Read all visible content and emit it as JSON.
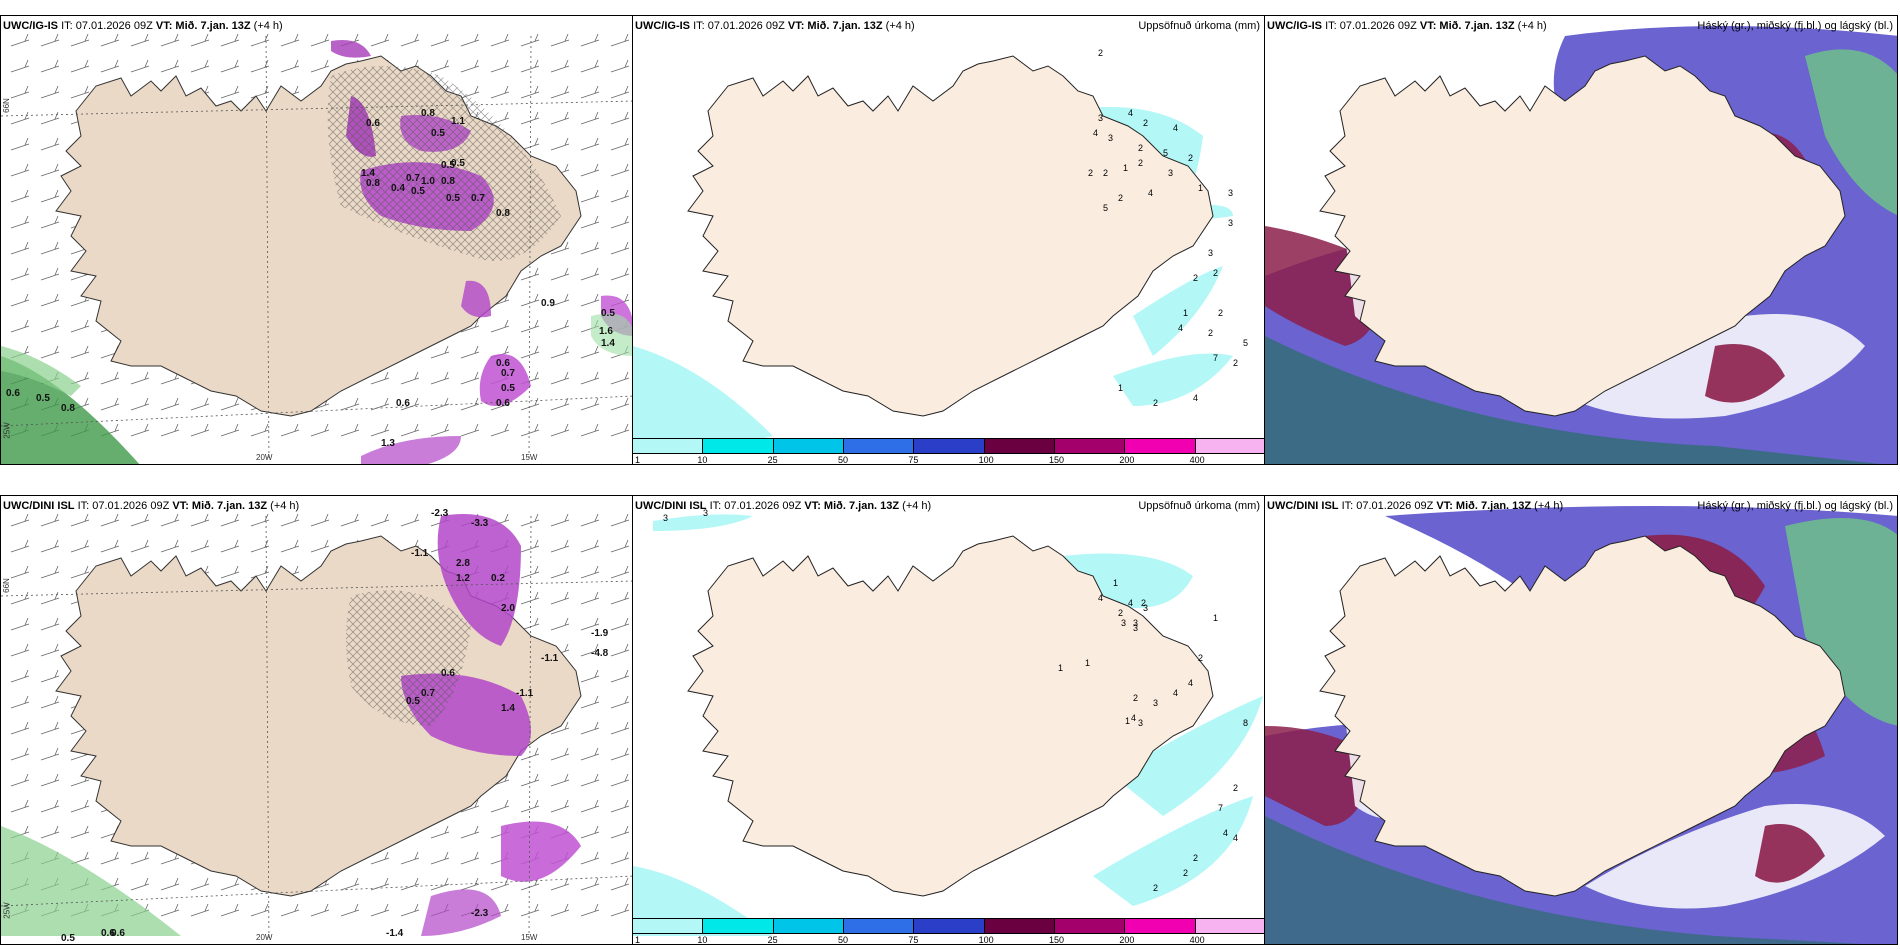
{
  "panels": [
    {
      "id": "p1",
      "model": "UWC/IG-IS",
      "it": "IT: 07.01.2026 09Z",
      "vt_label": "VT:",
      "vt": "Mið. 7.jan. 13Z",
      "lead": "(+4 h)",
      "right_title": ""
    },
    {
      "id": "p2",
      "model": "UWC/IG-IS",
      "it": "IT: 07.01.2026 09Z",
      "vt_label": "VT:",
      "vt": "Mið. 7.jan. 13Z",
      "lead": "(+4 h)",
      "right_title": "Uppsöfnuð úrkoma (mm)"
    },
    {
      "id": "p3",
      "model": "UWC/IG-IS",
      "it": "IT: 07.01.2026 09Z",
      "vt_label": "VT:",
      "vt": "Mið. 7.jan. 13Z",
      "lead": "(+4 h)",
      "right_title": "Háský (gr.), miðský (fj.bl.) og lágský (bl.)"
    },
    {
      "id": "p4",
      "model": "UWC/DINI ISL",
      "it": "IT: 07.01.2026 09Z",
      "vt_label": "VT:",
      "vt": "Mið. 7.jan. 13Z",
      "lead": "(+4 h)",
      "right_title": ""
    },
    {
      "id": "p5",
      "model": "UWC/DINI ISL",
      "it": "IT: 07.01.2026 09Z",
      "vt_label": "VT:",
      "vt": "Mið. 7.jan. 13Z",
      "lead": "(+4 h)",
      "right_title": "Uppsöfnuð úrkoma (mm)"
    },
    {
      "id": "p6",
      "model": "UWC/DINI ISL",
      "it": "IT: 07.01.2026 09Z",
      "vt_label": "VT:",
      "vt": "Mið. 7.jan. 13Z",
      "lead": "(+4 h)",
      "right_title": "Háský (gr.), miðský (fj.bl.) og lágský (bl.)"
    }
  ],
  "axis_labels": {
    "lon1": "20W",
    "lon2": "15W",
    "lat": "66N",
    "lon3": "25W"
  },
  "colorbar": {
    "ticks": [
      "1",
      "10",
      "25",
      "50",
      "75",
      "100",
      "150",
      "200",
      "400"
    ],
    "colors": [
      "#b3f7f7",
      "#00e8e8",
      "#00c4e8",
      "#2e6fe8",
      "#2a3ec7",
      "#6b0040",
      "#a3006b",
      "#f000b0",
      "#f6b3f0"
    ]
  },
  "precip_labels_top": [
    "2",
    "3",
    "4",
    "2",
    "4",
    "4",
    "3",
    "2",
    "5",
    "2",
    "2",
    "1",
    "2",
    "2",
    "3",
    "1",
    "3",
    "4",
    "2",
    "5",
    "3",
    "3",
    "2",
    "2",
    "1",
    "2",
    "4",
    "2",
    "7",
    "1",
    "2",
    "4",
    "2",
    "5"
  ],
  "precip_labels_bottom": [
    "3",
    "3",
    "1",
    "4",
    "4",
    "2",
    "3",
    "3",
    "2",
    "3",
    "3",
    "1",
    "1",
    "1",
    "2",
    "4",
    "4",
    "2",
    "3",
    "4",
    "1",
    "3",
    "8",
    "2",
    "7",
    "4",
    "4",
    "2",
    "2",
    "2"
  ],
  "temp_labels_top": [
    "0.8",
    "1.1",
    "0.5",
    "0.6",
    "0.5",
    "0.7",
    "1.0",
    "0.8",
    "0.5",
    "0.8",
    "0.4",
    "0.5",
    "0.5",
    "1.4",
    "0.7",
    "0.8",
    "0.6",
    "0.7",
    "0.5",
    "0.6",
    "0.9",
    "1.4",
    "1.6",
    "1.3",
    "0.6",
    "0.6",
    "0.5",
    "0.8",
    "0.5"
  ],
  "temp_labels_bottom": [
    "-2.3",
    "-3.3",
    "-1.1",
    "2.8",
    "0.2",
    "1.2",
    "2.0",
    "0.6",
    "0.7",
    "0.5",
    "1.4",
    "-1.1",
    "-1.1",
    "-1.9",
    "-4.8",
    "0.6",
    "0.6",
    "-1.4",
    "-2.3",
    "0.5"
  ]
}
